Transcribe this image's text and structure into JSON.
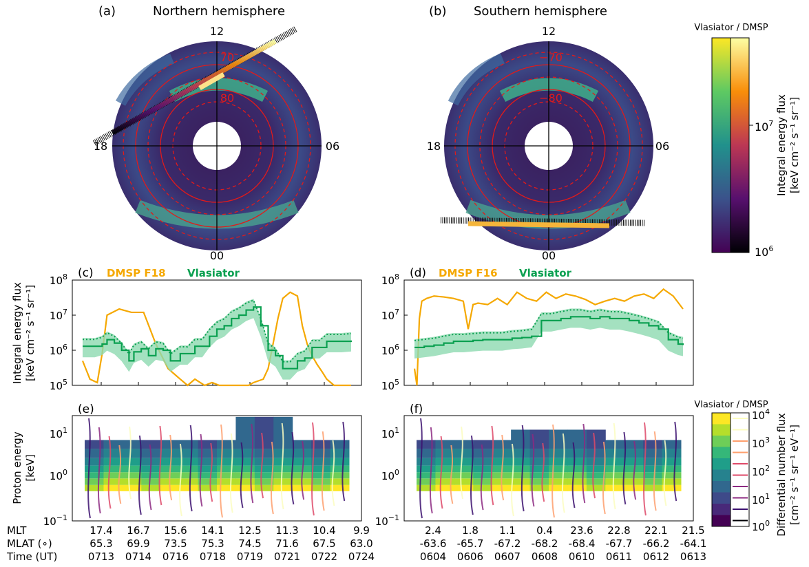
{
  "colors": {
    "dmsp": "#f5a800",
    "vlasiator": "#0aa050",
    "vlasiator_fill": "#8dd9b0",
    "circle_red": "#e21a1a",
    "disk_bg": "#3b1c5a"
  },
  "panels": {
    "a": {
      "letter": "(a)",
      "title": "Northern hemisphere",
      "mlt_labels": [
        "12",
        "18",
        "06",
        "00"
      ],
      "lat_labels": [
        "70",
        "80"
      ]
    },
    "b": {
      "letter": "(b)",
      "title": "Southern hemisphere",
      "mlt_labels": [
        "12",
        "18",
        "06",
        "00"
      ],
      "lat_labels": [
        "−70",
        "−80"
      ]
    },
    "c": {
      "letter": "(c)",
      "legend_dmsp": "DMSP F18",
      "legend_vlasiator": "Vlasiator"
    },
    "d": {
      "letter": "(d)",
      "legend_dmsp": "DMSP F16",
      "legend_vlasiator": "Vlasiator"
    },
    "e": {
      "letter": "(e)"
    },
    "f": {
      "letter": "(f)"
    }
  },
  "colorbar_top": {
    "title": "Vlasiator / DMSP",
    "label_line1": "Integral energy flux",
    "label_line2": "[keV cm⁻² s⁻¹ sr⁻¹]",
    "ticks": [
      {
        "base": "10",
        "exp": "7",
        "value": 10000000
      },
      {
        "base": "10",
        "exp": "6",
        "value": 1000000
      }
    ]
  },
  "colorbar_bottom": {
    "title": "Vlasiator / DMSP",
    "label_line1": "Differential number flux",
    "label_line2": "[cm⁻² s⁻¹ sr⁻¹ eV⁻¹]",
    "ticks": [
      {
        "base": "10",
        "exp": "4"
      },
      {
        "base": "10",
        "exp": "3"
      },
      {
        "base": "10",
        "exp": "2"
      },
      {
        "base": "10",
        "exp": "1"
      },
      {
        "base": "10",
        "exp": "0"
      }
    ]
  },
  "flux_axis": {
    "ylabel_line1": "Integral energy flux",
    "ylabel_line2": "[keV cm⁻² s⁻¹ sr⁻¹]",
    "ticks": [
      {
        "base": "10",
        "exp": "8"
      },
      {
        "base": "10",
        "exp": "7"
      },
      {
        "base": "10",
        "exp": "6"
      },
      {
        "base": "10",
        "exp": "5"
      }
    ]
  },
  "energy_axis": {
    "ylabel_line1": "Proton energy",
    "ylabel_line2": "[keV]",
    "ticks": [
      {
        "base": "10",
        "exp": "1"
      },
      {
        "base": "10",
        "exp": "0"
      },
      {
        "base": "10",
        "exp": "−1"
      }
    ]
  },
  "bottom_labels": [
    "MLT",
    "MLAT (∘)",
    "Time (UT)"
  ],
  "chart_data": [
    {
      "type": "line",
      "panel": "c",
      "ylabel": "Integral energy flux [keV cm⁻² s⁻¹ sr⁻¹]",
      "yscale": "log",
      "ylim": [
        100000,
        100000000
      ],
      "x_ticks": {
        "MLT": [
          "17.4",
          "16.7",
          "15.6",
          "14.1",
          "12.5",
          "11.3",
          "10.4",
          "9.9"
        ],
        "MLAT": [
          "65.3",
          "69.9",
          "73.5",
          "75.3",
          "74.5",
          "71.6",
          "67.5",
          "63.0"
        ],
        "Time": [
          "0713",
          "0714",
          "0716",
          "0718",
          "0719",
          "0721",
          "0722",
          "0724"
        ]
      },
      "series": [
        {
          "name": "DMSP F18",
          "x": [
            0,
            0.3,
            0.6,
            0.8,
            1.0,
            1.5,
            2.0,
            2.5,
            3.0,
            3.5,
            4.0,
            4.3,
            4.6,
            5.0,
            5.3,
            5.6,
            6.0,
            6.5,
            6.8,
            7.0,
            7.4,
            7.6,
            7.8,
            8.0,
            8.2,
            8.5,
            8.8,
            9.0,
            9.2,
            9.4,
            9.6,
            9.8,
            10.0,
            10.3,
            10.6,
            11.0
          ],
          "y": [
            500000,
            150000,
            120000,
            800000,
            10000000,
            15000000,
            12000000,
            12000000,
            1500000,
            300000,
            150000,
            80000,
            150000,
            80000,
            120000,
            80000,
            100000,
            90000,
            100000,
            120000,
            150000,
            300000,
            1500000,
            8000000,
            30000000,
            45000000,
            35000000,
            5000000,
            1500000,
            700000,
            400000,
            250000,
            150000,
            90000,
            100000,
            90000
          ]
        },
        {
          "name": "Vlasiator",
          "x": [
            0,
            0.5,
            0.8,
            1.0,
            1.3,
            1.6,
            1.9,
            2.1,
            2.4,
            2.7,
            3.0,
            3.3,
            3.6,
            4.0,
            4.3,
            4.6,
            4.9,
            5.2,
            5.5,
            5.8,
            6.1,
            6.4,
            6.7,
            7.0,
            7.3,
            7.6,
            7.9,
            8.2,
            8.5,
            8.8,
            9.1,
            9.4,
            9.7,
            10.0,
            10.3,
            10.6,
            11.0
          ],
          "y": [
            1300000,
            1300000,
            1500000,
            2000000,
            1600000,
            1000000,
            500000,
            900000,
            1100000,
            700000,
            1100000,
            1000000,
            500000,
            800000,
            800000,
            1300000,
            1300000,
            2500000,
            4000000,
            5000000,
            8000000,
            10000000,
            14000000,
            17000000,
            5000000,
            1000000,
            700000,
            300000,
            300000,
            500000,
            600000,
            1200000,
            1200000,
            1800000,
            1800000,
            1800000,
            1900000
          ]
        }
      ]
    },
    {
      "type": "line",
      "panel": "d",
      "ylabel": "Integral energy flux [keV cm⁻² s⁻¹ sr⁻¹]",
      "yscale": "log",
      "ylim": [
        100000,
        100000000
      ],
      "x_ticks": {
        "MLT": [
          "2.4",
          "1.8",
          "1.1",
          "0.4",
          "23.6",
          "22.8",
          "22.1",
          "21.5"
        ],
        "MLAT": [
          "-63.6",
          "-65.7",
          "-67.2",
          "-68.2",
          "-68.4",
          "-67.7",
          "-66.2",
          "-64.1"
        ],
        "Time": [
          "0604",
          "0606",
          "0607",
          "0608",
          "0610",
          "0611",
          "0612",
          "0613"
        ]
      },
      "series": [
        {
          "name": "DMSP F16",
          "x": [
            0,
            0.1,
            0.2,
            0.3,
            0.5,
            0.8,
            1.2,
            1.6,
            2.0,
            2.2,
            2.4,
            2.6,
            3.0,
            3.4,
            3.8,
            4.2,
            4.6,
            5.0,
            5.4,
            5.8,
            6.2,
            6.6,
            7.0,
            7.4,
            7.8,
            8.2,
            8.6,
            9.0,
            9.4,
            9.8,
            10.2,
            10.6,
            11.0
          ],
          "y": [
            300000,
            60000,
            8000000,
            25000000,
            30000000,
            35000000,
            33000000,
            30000000,
            25000000,
            4000000,
            20000000,
            22000000,
            20000000,
            30000000,
            20000000,
            45000000,
            30000000,
            25000000,
            45000000,
            30000000,
            40000000,
            35000000,
            28000000,
            20000000,
            25000000,
            30000000,
            25000000,
            35000000,
            40000000,
            30000000,
            55000000,
            35000000,
            15000000
          ]
        },
        {
          "name": "Vlasiator",
          "x": [
            0,
            0.4,
            0.8,
            1.2,
            1.6,
            2.0,
            2.4,
            2.8,
            3.2,
            3.6,
            4.0,
            4.4,
            4.8,
            5.2,
            5.6,
            6.0,
            6.4,
            6.8,
            7.2,
            7.6,
            8.0,
            8.4,
            8.8,
            9.2,
            9.6,
            10.0,
            10.4,
            10.8,
            11.0
          ],
          "y": [
            1200000,
            1300000,
            1400000,
            1600000,
            1800000,
            1800000,
            1900000,
            2000000,
            2000000,
            2000000,
            2200000,
            2300000,
            2500000,
            7000000,
            7000000,
            8000000,
            9000000,
            9000000,
            8000000,
            9000000,
            8000000,
            8000000,
            7000000,
            6000000,
            5000000,
            4000000,
            2000000,
            1500000,
            1400000
          ]
        }
      ]
    },
    {
      "type": "heatmap",
      "panel": "e",
      "ylabel": "Proton energy [keV]",
      "yscale": "log",
      "ylim": [
        0.1,
        30
      ]
    },
    {
      "type": "heatmap",
      "panel": "f",
      "ylabel": "Proton energy [keV]",
      "yscale": "log",
      "ylim": [
        0.1,
        30
      ]
    }
  ]
}
